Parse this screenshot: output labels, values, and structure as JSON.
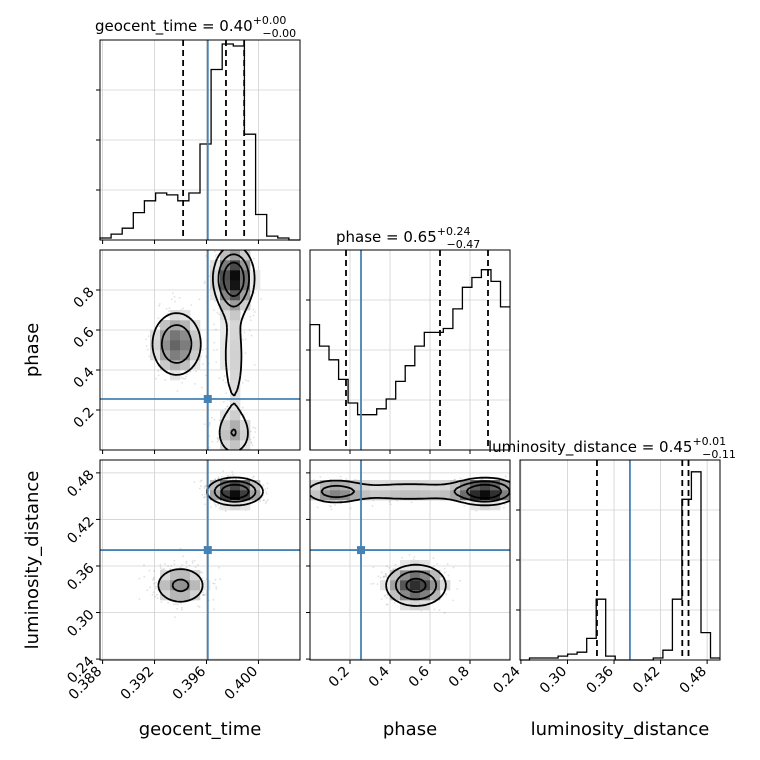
{
  "chart_data": {
    "type": "corner",
    "parameters": [
      {
        "name": "geocent_time",
        "title_prefix": "geocent_time = 0.40",
        "title_sup": "+0.00",
        "title_sub": "−0.00",
        "range": [
          0.3878,
          0.4032
        ],
        "ticks": [
          0.388,
          0.392,
          0.396,
          0.4
        ],
        "tick_labels": [
          "0.388",
          "0.392",
          "0.396",
          "0.400"
        ],
        "truth": 0.3961,
        "quantiles": [
          0.3942,
          0.3975,
          0.3989
        ],
        "histogram": [
          0.01,
          0.03,
          0.06,
          0.14,
          0.2,
          0.24,
          0.23,
          0.2,
          0.24,
          0.49,
          0.87,
          1.0,
          0.99,
          0.54,
          0.13,
          0.02,
          0.01,
          0
        ]
      },
      {
        "name": "phase",
        "title_prefix": "phase = 0.65",
        "title_sup": "+0.24",
        "title_sub": "−0.47",
        "range": [
          0.0,
          1.0
        ],
        "ticks": [
          0.2,
          0.4,
          0.6,
          0.8
        ],
        "tick_labels": [
          "0.2",
          "0.4",
          "0.6",
          "0.8"
        ],
        "truth": 0.255,
        "quantiles": [
          0.18,
          0.65,
          0.89
        ],
        "histogram": [
          0.64,
          0.53,
          0.46,
          0.36,
          0.24,
          0.18,
          0.18,
          0.21,
          0.26,
          0.35,
          0.43,
          0.53,
          0.6,
          0.6,
          0.62,
          0.72,
          0.83,
          0.88,
          0.92,
          0.86,
          0.73
        ]
      },
      {
        "name": "luminosity_distance",
        "title_prefix": "luminosity_distance = 0.45",
        "title_sup": "+0.01",
        "title_sub": "−0.11",
        "range": [
          0.2388,
          0.4966
        ],
        "ticks": [
          0.24,
          0.3,
          0.36,
          0.42,
          0.48
        ],
        "tick_labels": [
          "0.24",
          "0.30",
          "0.36",
          "0.42",
          "0.48"
        ],
        "truth": 0.3805,
        "quantiles": [
          0.338,
          0.448,
          0.456
        ],
        "histogram": [
          0,
          0.01,
          0.01,
          0.01,
          0.02,
          0.03,
          0.04,
          0.11,
          0.31,
          0.02,
          0,
          0,
          0,
          0,
          0.01,
          0.05,
          0.31,
          0.82,
          0.96,
          0.14,
          0.01
        ]
      }
    ]
  }
}
